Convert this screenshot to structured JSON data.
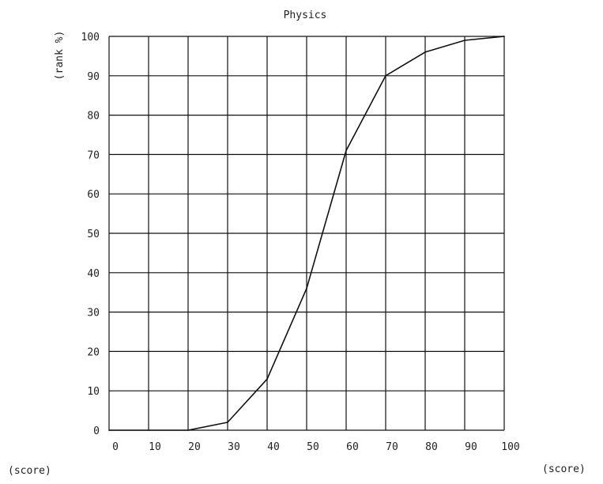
{
  "chart_data": {
    "type": "line",
    "title": "Physics",
    "xlabel": "(score)",
    "xlabel_left": "(score)",
    "ylabel": "(rank %)",
    "x_ticks": [
      "0",
      "10",
      "20",
      "30",
      "40",
      "50",
      "60",
      "70",
      "80",
      "90",
      "100"
    ],
    "y_ticks": [
      "0",
      "10",
      "20",
      "30",
      "40",
      "50",
      "60",
      "70",
      "80",
      "90",
      "100"
    ],
    "xlim": [
      0,
      100
    ],
    "ylim": [
      0,
      100
    ],
    "grid": true,
    "series": [
      {
        "x": [
          0,
          10,
          20,
          30,
          40,
          50,
          60,
          70,
          80,
          90,
          100
        ],
        "y": [
          0,
          0,
          0,
          2,
          13,
          36,
          71,
          90,
          96,
          99,
          100
        ]
      }
    ],
    "colors": {
      "line": "#111111",
      "grid": "#111111",
      "text": "#222222"
    }
  }
}
